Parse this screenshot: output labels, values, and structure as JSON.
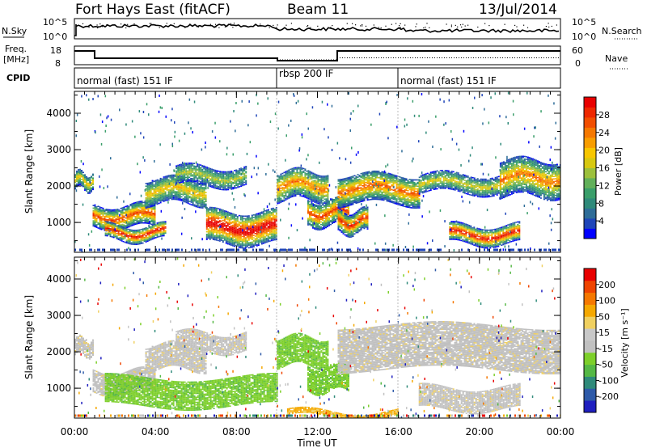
{
  "header": {
    "station": "Fort Hays East (fitACF)",
    "beam": "Beam 11",
    "date": "13/Jul/2014"
  },
  "top_panels": {
    "nsky_label": "N.Sky",
    "nsky_ticks": [
      "10^5",
      "10^0"
    ],
    "nsearch_label": "N.Search",
    "nsearch_ticks": [
      "10^5",
      "10^0"
    ],
    "freq_label": "Freq.",
    "freq_unit": "[MHz]",
    "freq_ticks": [
      "18",
      "8"
    ],
    "nave_label": "Nave",
    "nave_ticks": [
      "60",
      "0"
    ],
    "cpid_label": "CPID",
    "cpid_segments": [
      {
        "label": "normal (fast) 151 IF",
        "start_h": 0,
        "end_h": 10
      },
      {
        "label": "rbsp 200 IF",
        "start_h": 10,
        "end_h": 16
      },
      {
        "label": "normal (fast) 151 IF",
        "start_h": 16,
        "end_h": 24
      }
    ]
  },
  "chart_data": [
    {
      "type": "heatmap",
      "panel": "power",
      "ylabel": "Slant Range [km]",
      "xlabel": "Time UT",
      "ylim": [
        180,
        4600
      ],
      "xlim_hours": [
        0,
        24
      ],
      "yticks": [
        "4000",
        "3000",
        "2000",
        "1000"
      ],
      "colorbar": {
        "label": "Power [dB]",
        "ticks": [
          "28",
          "24",
          "20",
          "16",
          "12",
          "8",
          "4"
        ],
        "colors": [
          "#0000ff",
          "#1f45b8",
          "#2f6d98",
          "#2f8a7a",
          "#3a9e6a",
          "#62b05a",
          "#9cc03c",
          "#d7c810",
          "#f7c600",
          "#f89d00",
          "#f57800",
          "#f24e00",
          "#ee2800",
          "#e80000"
        ]
      },
      "bands": [
        {
          "t0": 0.0,
          "t1": 0.9,
          "r0": 1900,
          "r1": 2350,
          "peak": 0.55
        },
        {
          "t0": 0.9,
          "t1": 4.0,
          "r0": 850,
          "r1": 1450,
          "peak": 0.8
        },
        {
          "t0": 1.5,
          "t1": 4.5,
          "r0": 500,
          "r1": 900,
          "peak": 0.9
        },
        {
          "t0": 3.5,
          "t1": 6.5,
          "r0": 1500,
          "r1": 2200,
          "peak": 0.55
        },
        {
          "t0": 5.0,
          "t1": 8.5,
          "r0": 2000,
          "r1": 2500,
          "peak": 0.45
        },
        {
          "t0": 6.5,
          "t1": 10.0,
          "r0": 400,
          "r1": 1300,
          "peak": 1.0
        },
        {
          "t0": 10.0,
          "t1": 12.5,
          "r0": 1600,
          "r1": 2400,
          "peak": 0.7
        },
        {
          "t0": 11.5,
          "t1": 13.5,
          "r0": 900,
          "r1": 1600,
          "peak": 0.8
        },
        {
          "t0": 13.0,
          "t1": 14.5,
          "r0": 700,
          "r1": 1300,
          "peak": 0.85
        },
        {
          "t0": 13.0,
          "t1": 17.0,
          "r0": 1500,
          "r1": 2300,
          "peak": 0.75
        },
        {
          "t0": 17.0,
          "t1": 21.0,
          "r0": 1800,
          "r1": 2300,
          "peak": 0.5
        },
        {
          "t0": 18.5,
          "t1": 22.0,
          "r0": 400,
          "r1": 900,
          "peak": 0.9
        },
        {
          "t0": 21.0,
          "t1": 24.0,
          "r0": 1700,
          "r1": 2700,
          "peak": 0.7
        }
      ]
    },
    {
      "type": "heatmap",
      "panel": "velocity",
      "ylabel": "Slant Range [km]",
      "xlabel": "Time UT",
      "ylim": [
        180,
        4600
      ],
      "xlim_hours": [
        0,
        24
      ],
      "yticks": [
        "4000",
        "3000",
        "2000",
        "1000"
      ],
      "colorbar": {
        "label": "Velocity [m s⁻¹]",
        "ticks": [
          "200",
          "100",
          "50",
          "15",
          "-15",
          "-50",
          "-100",
          "-200"
        ],
        "colors": [
          "#1f1fbf",
          "#2e5aa8",
          "#2f8a7a",
          "#55b845",
          "#7dcf2a",
          "#c0c0c0",
          "#c8c8c8",
          "#f0d060",
          "#f5a800",
          "#f57800",
          "#ef4400",
          "#e80000"
        ]
      },
      "bands": [
        {
          "t0": 0.0,
          "t1": 0.9,
          "r0": 1900,
          "r1": 2350,
          "vel": "gray"
        },
        {
          "t0": 0.9,
          "t1": 4.0,
          "r0": 850,
          "r1": 1450,
          "vel": "gray"
        },
        {
          "t0": 1.5,
          "t1": 10.0,
          "r0": 500,
          "r1": 1300,
          "vel": "green"
        },
        {
          "t0": 3.5,
          "t1": 6.5,
          "r0": 1500,
          "r1": 2200,
          "vel": "gray"
        },
        {
          "t0": 5.0,
          "t1": 8.5,
          "r0": 2000,
          "r1": 2500,
          "vel": "gray"
        },
        {
          "t0": 10.0,
          "t1": 12.5,
          "r0": 1600,
          "r1": 2400,
          "vel": "green"
        },
        {
          "t0": 11.5,
          "t1": 13.5,
          "r0": 900,
          "r1": 1600,
          "vel": "green"
        },
        {
          "t0": 13.0,
          "t1": 24.0,
          "r0": 1500,
          "r1": 2700,
          "vel": "gray"
        },
        {
          "t0": 17.0,
          "t1": 22.0,
          "r0": 400,
          "r1": 1000,
          "vel": "gray"
        },
        {
          "t0": 10.5,
          "t1": 16.0,
          "r0": 200,
          "r1": 350,
          "vel": "orange"
        }
      ]
    }
  ],
  "x_axis": {
    "ticks": [
      "00:00",
      "04:00",
      "08:00",
      "12:00",
      "16:00",
      "20:00",
      "00:00"
    ],
    "label": "Time UT"
  }
}
